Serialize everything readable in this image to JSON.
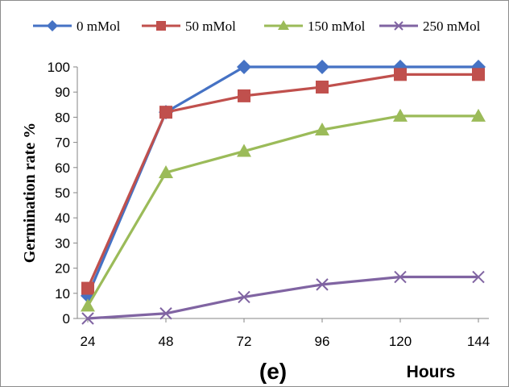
{
  "chart_data": {
    "type": "line",
    "panel_label": "(e)",
    "xlabel": "Hours",
    "ylabel": "Germination rate  %",
    "x": [
      24,
      48,
      72,
      96,
      120,
      144
    ],
    "ylim": [
      0,
      100
    ],
    "yticks": [
      0,
      10,
      20,
      30,
      40,
      50,
      60,
      70,
      80,
      90,
      100
    ],
    "grid": false,
    "legend_position": "top",
    "series": [
      {
        "name": "0 mMol",
        "values": [
          9,
          82,
          100,
          100,
          100,
          100
        ],
        "color": "#4572c4",
        "marker": "diamond"
      },
      {
        "name": "50 mMol",
        "values": [
          12,
          82,
          88.5,
          92,
          97,
          97
        ],
        "color": "#c0504d",
        "marker": "square"
      },
      {
        "name": "150 mMol",
        "values": [
          5,
          58,
          66.5,
          75,
          80.5,
          80.5
        ],
        "color": "#9bbb59",
        "marker": "triangle"
      },
      {
        "name": "250 mMol",
        "values": [
          0,
          2,
          8.5,
          13.5,
          16.5,
          16.5
        ],
        "color": "#8064a2",
        "marker": "x"
      }
    ]
  }
}
